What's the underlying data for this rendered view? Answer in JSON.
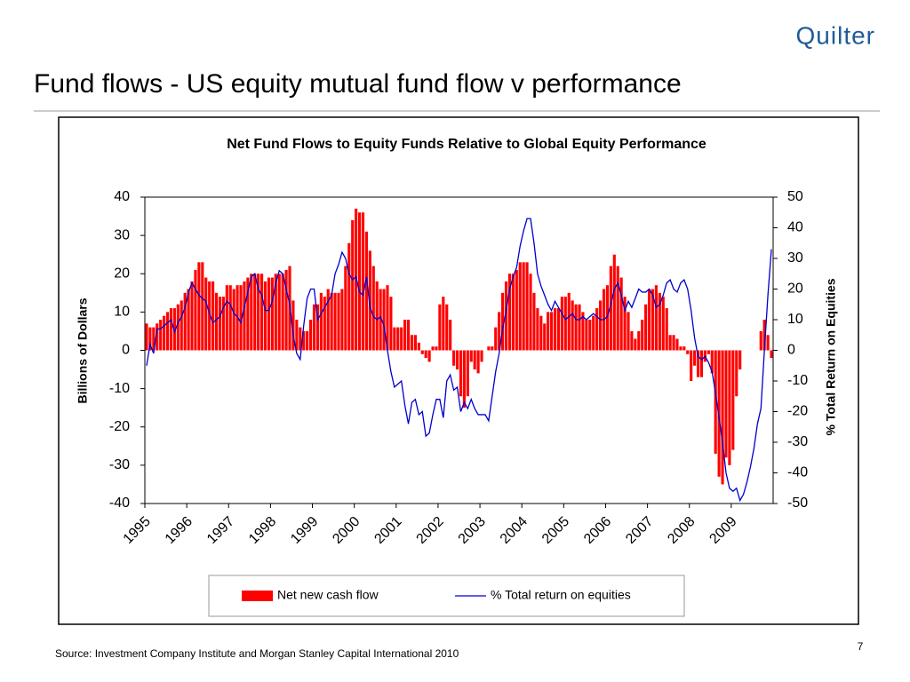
{
  "header": {
    "logo": "Quilter",
    "title": "Fund flows - US equity mutual fund flow v performance"
  },
  "chart_data": {
    "type": "combo",
    "title": "Net Fund Flows to Equity Funds Relative to Global Equity Performance",
    "y_label": "Billions of Dollars",
    "y2_label": "% Total Return on Equities",
    "categories": [
      "1995",
      null,
      null,
      null,
      null,
      null,
      null,
      null,
      null,
      null,
      null,
      null,
      "1996",
      null,
      null,
      null,
      null,
      null,
      null,
      null,
      null,
      null,
      null,
      null,
      "1997",
      null,
      null,
      null,
      null,
      null,
      null,
      null,
      null,
      null,
      null,
      null,
      "1998",
      null,
      null,
      null,
      null,
      null,
      null,
      null,
      null,
      null,
      null,
      null,
      "1999",
      null,
      null,
      null,
      null,
      null,
      null,
      null,
      null,
      null,
      null,
      null,
      "2000",
      null,
      null,
      null,
      null,
      null,
      null,
      null,
      null,
      null,
      null,
      null,
      "2001",
      null,
      null,
      null,
      null,
      null,
      null,
      null,
      null,
      null,
      null,
      null,
      "2002",
      null,
      null,
      null,
      null,
      null,
      null,
      null,
      null,
      null,
      null,
      null,
      "2003",
      null,
      null,
      null,
      null,
      null,
      null,
      null,
      null,
      null,
      null,
      null,
      "2004",
      null,
      null,
      null,
      null,
      null,
      null,
      null,
      null,
      null,
      null,
      null,
      "2005",
      null,
      null,
      null,
      null,
      null,
      null,
      null,
      null,
      null,
      null,
      null,
      "2006",
      null,
      null,
      null,
      null,
      null,
      null,
      null,
      null,
      null,
      null,
      null,
      "2007",
      null,
      null,
      null,
      null,
      null,
      null,
      null,
      null,
      null,
      null,
      null,
      "2008",
      null,
      null,
      null,
      null,
      null,
      null,
      null,
      null,
      null,
      null,
      null,
      "2009",
      null,
      null,
      null,
      null,
      null,
      null,
      null,
      null,
      null,
      null,
      null
    ],
    "series": [
      {
        "name": "Net new cash flow",
        "type": "bar",
        "axis": "y",
        "color": "#ff0000",
        "values": [
          7,
          6,
          6,
          7,
          8,
          9,
          10,
          11,
          11,
          12,
          13,
          15,
          16,
          18,
          21,
          23,
          23,
          19,
          18,
          18,
          15,
          14,
          14,
          17,
          17,
          16,
          17,
          17,
          18,
          19,
          20,
          20,
          20,
          20,
          18,
          19,
          19,
          20,
          20,
          20,
          21,
          22,
          13,
          8,
          6,
          5,
          5,
          8,
          12,
          12,
          15,
          14,
          16,
          15,
          15,
          15,
          16,
          22,
          28,
          34,
          37,
          36,
          36,
          31,
          26,
          22,
          18,
          16,
          16,
          17,
          14,
          6,
          6,
          6,
          8,
          8,
          4,
          4,
          2,
          -1,
          -2,
          -3,
          1,
          1,
          12,
          14,
          12,
          8,
          -4,
          -5,
          -12,
          -15,
          -12,
          -3,
          -5,
          -6,
          -3,
          0,
          1,
          1,
          6,
          10,
          15,
          18,
          20,
          20,
          21,
          23,
          23,
          23,
          20,
          15,
          11,
          9,
          7,
          10,
          10,
          11,
          11,
          14,
          14,
          15,
          13,
          12,
          12,
          10,
          8,
          8,
          9,
          11,
          13,
          16,
          17,
          22,
          25,
          22,
          19,
          14,
          10,
          5,
          3,
          5,
          8,
          12,
          16,
          16,
          17,
          15,
          14,
          11,
          4,
          4,
          3,
          1,
          1,
          -1,
          -8,
          -4,
          -7,
          -7,
          -3,
          -1,
          -6,
          -27,
          -33,
          -35,
          -28,
          -30,
          -26,
          -12,
          -5,
          0,
          0,
          0,
          0,
          0,
          5,
          8,
          4,
          -2
        ]
      },
      {
        "name": "% Total return on equities",
        "type": "line",
        "axis": "y2",
        "color": "#0000cc",
        "values": [
          -5,
          2,
          -1,
          7,
          7,
          8,
          9,
          10,
          6,
          9,
          11,
          14,
          19,
          22,
          20,
          18,
          17,
          16,
          12,
          9,
          10,
          11,
          14,
          16,
          15,
          12,
          11,
          9,
          14,
          19,
          24,
          25,
          20,
          18,
          13,
          13,
          16,
          22,
          26,
          25,
          20,
          15,
          5,
          -1,
          -3,
          8,
          17,
          20,
          20,
          10,
          12,
          14,
          16,
          18,
          25,
          28,
          32,
          30,
          25,
          23,
          24,
          19,
          18,
          24,
          14,
          11,
          10,
          11,
          8,
          0,
          -7,
          -12,
          -11,
          -10,
          -18,
          -24,
          -17,
          -16,
          -21,
          -20,
          -28,
          -27,
          -21,
          -16,
          -16,
          -22,
          -10,
          -8,
          -13,
          -12,
          -20,
          -17,
          -19,
          -16,
          -19,
          -21,
          -21,
          -21,
          -23,
          -15,
          -7,
          -1,
          7,
          13,
          20,
          24,
          27,
          34,
          39,
          43,
          43,
          35,
          25,
          21,
          18,
          15,
          13,
          16,
          14,
          12,
          10,
          11,
          12,
          10,
          10,
          11,
          10,
          11,
          12,
          11,
          10,
          10,
          11,
          15,
          20,
          22,
          18,
          13,
          16,
          14,
          17,
          20,
          19,
          19,
          20,
          18,
          14,
          15,
          18,
          22,
          23,
          20,
          19,
          22,
          23,
          20,
          13,
          4,
          -2,
          -3,
          -2,
          -4,
          -7,
          -14,
          -22,
          -30,
          -40,
          -45,
          -46,
          -45,
          -49,
          -47,
          -43,
          -38,
          -32,
          -24,
          -19,
          0,
          18,
          33
        ]
      }
    ],
    "ylim": [
      -40,
      40
    ],
    "yticks": [
      -40,
      -30,
      -20,
      -10,
      0,
      10,
      20,
      30,
      40
    ],
    "y2lim": [
      -50,
      50
    ],
    "y2ticks": [
      -50,
      -40,
      -30,
      -20,
      -10,
      0,
      10,
      20,
      30,
      40,
      50
    ],
    "legend": "bottom"
  },
  "footer": {
    "source": "Source: Investment Company Institute and Morgan Stanley Capital International 2010",
    "page_number": "7"
  }
}
